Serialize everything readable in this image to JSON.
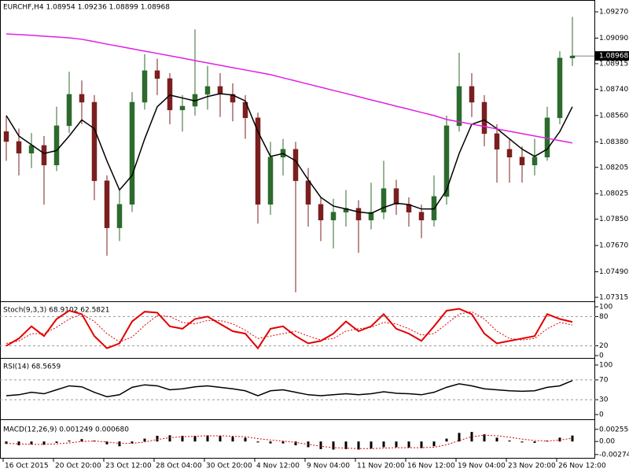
{
  "chart_data": [
    {
      "type": "candlestick",
      "header": "EURCHF,H4  1.08954 1.09236 1.08899 1.08968",
      "up_color": "#2d6a2d",
      "down_color": "#7a1f1f",
      "categories": [
        "16 Oct 2015",
        null,
        null,
        null,
        "20 Oct 20:00",
        null,
        null,
        null,
        "23 Oct 12:00",
        null,
        null,
        null,
        "28 Oct 04:00",
        null,
        null,
        null,
        "30 Oct 20:00",
        null,
        null,
        null,
        "4 Nov 12:00",
        null,
        null,
        null,
        "9 Nov 04:00",
        null,
        null,
        null,
        "11 Nov 20:00",
        null,
        null,
        null,
        "16 Nov 12:00",
        null,
        null,
        null,
        "19 Nov 04:00",
        null,
        null,
        null,
        "23 Nov 20:00",
        null,
        null,
        null,
        "26 Nov 12:00",
        null
      ],
      "candles": [
        [
          1.0845,
          1.0856,
          1.0825,
          1.08382
        ],
        [
          1.08382,
          1.0847,
          1.0815,
          1.08302
        ],
        [
          1.08302,
          1.0844,
          1.082,
          1.08355
        ],
        [
          1.08355,
          1.0842,
          1.0795,
          1.08221
        ],
        [
          1.08221,
          1.0862,
          1.0818,
          1.0849
        ],
        [
          1.0849,
          1.0886,
          1.0844,
          1.08705
        ],
        [
          1.08705,
          1.088,
          1.085,
          1.08651
        ],
        [
          1.08651,
          1.087,
          1.0798,
          1.08113
        ],
        [
          1.08113,
          1.0815,
          1.076,
          1.07791
        ],
        [
          1.07791,
          1.0805,
          1.077,
          1.07952
        ],
        [
          1.07952,
          1.0872,
          1.079,
          1.08651
        ],
        [
          1.08651,
          1.0898,
          1.086,
          1.08867
        ],
        [
          1.08867,
          1.0895,
          1.087,
          1.08813
        ],
        [
          1.08813,
          1.0885,
          1.085,
          1.08598
        ],
        [
          1.08598,
          1.087,
          1.0845,
          1.08624
        ],
        [
          1.08624,
          1.0915,
          1.0856,
          1.08705
        ],
        [
          1.08705,
          1.089,
          1.086,
          1.08759
        ],
        [
          1.08759,
          1.0885,
          1.0855,
          1.08705
        ],
        [
          1.08705,
          1.0878,
          1.0852,
          1.08651
        ],
        [
          1.08651,
          1.087,
          1.084,
          1.08544
        ],
        [
          1.08544,
          1.0858,
          1.0782,
          1.07952
        ],
        [
          1.07952,
          1.0838,
          1.0788,
          1.08275
        ],
        [
          1.08275,
          1.084,
          1.0815,
          1.08329
        ],
        [
          1.08329,
          1.0838,
          1.0735,
          1.08113
        ],
        [
          1.08113,
          1.082,
          1.078,
          1.07952
        ],
        [
          1.07952,
          1.08,
          1.077,
          1.07844
        ],
        [
          1.07844,
          1.0799,
          1.0765,
          1.07898
        ],
        [
          1.07898,
          1.0805,
          1.078,
          1.07925
        ],
        [
          1.07925,
          1.0798,
          1.0762,
          1.07844
        ],
        [
          1.07844,
          1.081,
          1.0778,
          1.07898
        ],
        [
          1.07898,
          1.0825,
          1.0785,
          1.0806
        ],
        [
          1.0806,
          1.0812,
          1.0788,
          1.07952
        ],
        [
          1.07952,
          1.08,
          1.078,
          1.07898
        ],
        [
          1.07898,
          1.0795,
          1.0772,
          1.07844
        ],
        [
          1.07844,
          1.0815,
          1.078,
          1.08006
        ],
        [
          1.08006,
          1.0856,
          1.0795,
          1.0849
        ],
        [
          1.0849,
          1.0899,
          1.0845,
          1.08759
        ],
        [
          1.08759,
          1.0885,
          1.0855,
          1.08651
        ],
        [
          1.08651,
          1.087,
          1.0835,
          1.08436
        ],
        [
          1.08436,
          1.085,
          1.081,
          1.08329
        ],
        [
          1.08329,
          1.084,
          1.081,
          1.08275
        ],
        [
          1.08275,
          1.0835,
          1.081,
          1.08221
        ],
        [
          1.08221,
          1.084,
          1.0815,
          1.08275
        ],
        [
          1.08275,
          1.0862,
          1.0825,
          1.08544
        ],
        [
          1.08544,
          1.09,
          1.085,
          1.08954
        ],
        [
          1.08954,
          1.09236,
          1.08899,
          1.08968
        ]
      ],
      "series": [
        {
          "color": "#000000",
          "values": [
            1.0856,
            1.0842,
            1.0836,
            1.083,
            1.0832,
            1.0842,
            1.0853,
            1.0847,
            1.0825,
            1.0805,
            1.0815,
            1.084,
            1.0862,
            1.087,
            1.0868,
            1.0866,
            1.0869,
            1.0871,
            1.087,
            1.0866,
            1.0845,
            1.0828,
            1.083,
            1.0825,
            1.0812,
            1.08,
            1.0794,
            1.0792,
            1.079,
            1.0789,
            1.0793,
            1.0796,
            1.0795,
            1.0792,
            1.0792,
            1.0805,
            1.083,
            1.085,
            1.0853,
            1.0847,
            1.084,
            1.0833,
            1.0828,
            1.0833,
            1.0845,
            1.0862
          ]
        },
        {
          "color": "#e020e0",
          "values": [
            1.09119,
            1.09114,
            1.09109,
            1.09103,
            1.09098,
            1.09092,
            1.09082,
            1.09066,
            1.09049,
            1.09033,
            1.09017,
            1.09001,
            1.08985,
            1.08969,
            1.08953,
            1.08936,
            1.0892,
            1.08904,
            1.08888,
            1.08872,
            1.08856,
            1.0884,
            1.08818,
            1.08797,
            1.08775,
            1.08754,
            1.08732,
            1.08711,
            1.08689,
            1.08667,
            1.08646,
            1.08624,
            1.08603,
            1.08581,
            1.0856,
            1.08533,
            1.08517,
            1.08501,
            1.08485,
            1.08468,
            1.08452,
            1.08436,
            1.0842,
            1.08404,
            1.08388,
            1.08372
          ]
        }
      ],
      "ylim": [
        1.07288,
        1.09351
      ],
      "yticks": [
        {
          "value": 1.0927,
          "label": "1.09270"
        },
        {
          "value": 1.0909,
          "label": "1.09090"
        },
        1.08915,
        {
          "value": 1.0874,
          "label": "1.08740"
        },
        {
          "value": 1.0856,
          "label": "1.08560"
        },
        {
          "value": 1.0838,
          "label": "1.08380"
        },
        1.08205,
        1.08025,
        {
          "value": 1.0785,
          "label": "1.07850"
        },
        {
          "value": 1.0767,
          "label": "1.07670"
        },
        {
          "value": 1.0749,
          "label": "1.07490"
        },
        1.07315
      ]
    },
    {
      "type": "line",
      "label": "Stoch(9,3,3) 68.9102 62.5821",
      "ylim": [
        0,
        100
      ],
      "yticks": [
        100,
        80,
        20,
        0
      ],
      "levels": [
        80,
        20
      ],
      "series": [
        {
          "color": "#e00000",
          "width": 2,
          "values": [
            20,
            35,
            60,
            40,
            75,
            92,
            85,
            40,
            15,
            25,
            70,
            90,
            88,
            60,
            55,
            75,
            80,
            65,
            50,
            45,
            15,
            55,
            60,
            40,
            25,
            30,
            45,
            70,
            50,
            60,
            85,
            55,
            45,
            30,
            60,
            92,
            96,
            85,
            45,
            25,
            30,
            35,
            40,
            85,
            75,
            68.9102
          ]
        },
        {
          "color": "#e00000",
          "dash": true,
          "width": 1,
          "values": [
            25,
            30,
            45,
            45,
            58,
            75,
            85,
            70,
            45,
            28,
            38,
            62,
            82,
            80,
            68,
            65,
            72,
            72,
            65,
            52,
            35,
            40,
            45,
            50,
            40,
            32,
            35,
            50,
            55,
            58,
            68,
            65,
            55,
            42,
            45,
            65,
            85,
            90,
            75,
            50,
            35,
            32,
            35,
            55,
            68,
            62.5821
          ]
        }
      ]
    },
    {
      "type": "line",
      "label": "RSI(14) 68.5659",
      "ylim": [
        0,
        100
      ],
      "yticks": [
        100,
        70,
        30,
        0
      ],
      "levels": [
        70,
        30
      ],
      "series": [
        {
          "color": "#000000",
          "width": 1.5,
          "values": [
            38,
            40,
            45,
            42,
            50,
            58,
            56,
            45,
            36,
            40,
            55,
            60,
            58,
            50,
            52,
            56,
            58,
            55,
            52,
            48,
            38,
            48,
            50,
            45,
            40,
            38,
            40,
            42,
            40,
            42,
            46,
            43,
            42,
            40,
            45,
            55,
            62,
            58,
            52,
            50,
            48,
            47,
            48,
            55,
            58,
            68.5659
          ]
        }
      ]
    },
    {
      "type": "bar",
      "label": "MACD(12,26,9) 0.001249 0.000680",
      "ylim": [
        -0.0036,
        0.004
      ],
      "yticks": [
        0.002554,
        {
          "value": 0,
          "label": "0.00"
        },
        -0.002744
      ],
      "series": [
        {
          "style": "bar",
          "color": "#000000",
          "values": [
            -0.0005,
            -0.0008,
            -0.0006,
            -0.0007,
            -0.0003,
            0.0002,
            0.0005,
            0.0002,
            -0.0006,
            -0.001,
            -0.0004,
            0.0006,
            0.0012,
            0.0013,
            0.0012,
            0.0012,
            0.0013,
            0.0012,
            0.001,
            0.0008,
            -0.0002,
            -0.0004,
            -0.0004,
            -0.0008,
            -0.0012,
            -0.0016,
            -0.0017,
            -0.0016,
            -0.0017,
            -0.0015,
            -0.0012,
            -0.0012,
            -0.0013,
            -0.0014,
            -0.001,
            0.0006,
            0.0018,
            0.002,
            0.0015,
            0.0008,
            0.0002,
            -0.0002,
            -0.0003,
            0.0002,
            0.0008,
            0.001249
          ]
        },
        {
          "style": "line",
          "color": "#e00000",
          "dash": true,
          "width": 1,
          "values": [
            -0.0004,
            -0.0005,
            -0.0006,
            -0.0006,
            -0.0005,
            -0.0003,
            0,
            0.0001,
            -0.0001,
            -0.0004,
            -0.0004,
            -0.0001,
            0.0004,
            0.0008,
            0.001,
            0.0011,
            0.0012,
            0.0012,
            0.0011,
            0.001,
            0.0006,
            0.0003,
            0.0001,
            -0.0002,
            -0.0006,
            -0.001,
            -0.0013,
            -0.0014,
            -0.0015,
            -0.0015,
            -0.0014,
            -0.0013,
            -0.0013,
            -0.0013,
            -0.0012,
            -0.0007,
            0.0002,
            0.001,
            0.0013,
            0.0012,
            0.0009,
            0.0005,
            0.0002,
            0.0001,
            0.0003,
            0.00068
          ]
        }
      ]
    }
  ]
}
